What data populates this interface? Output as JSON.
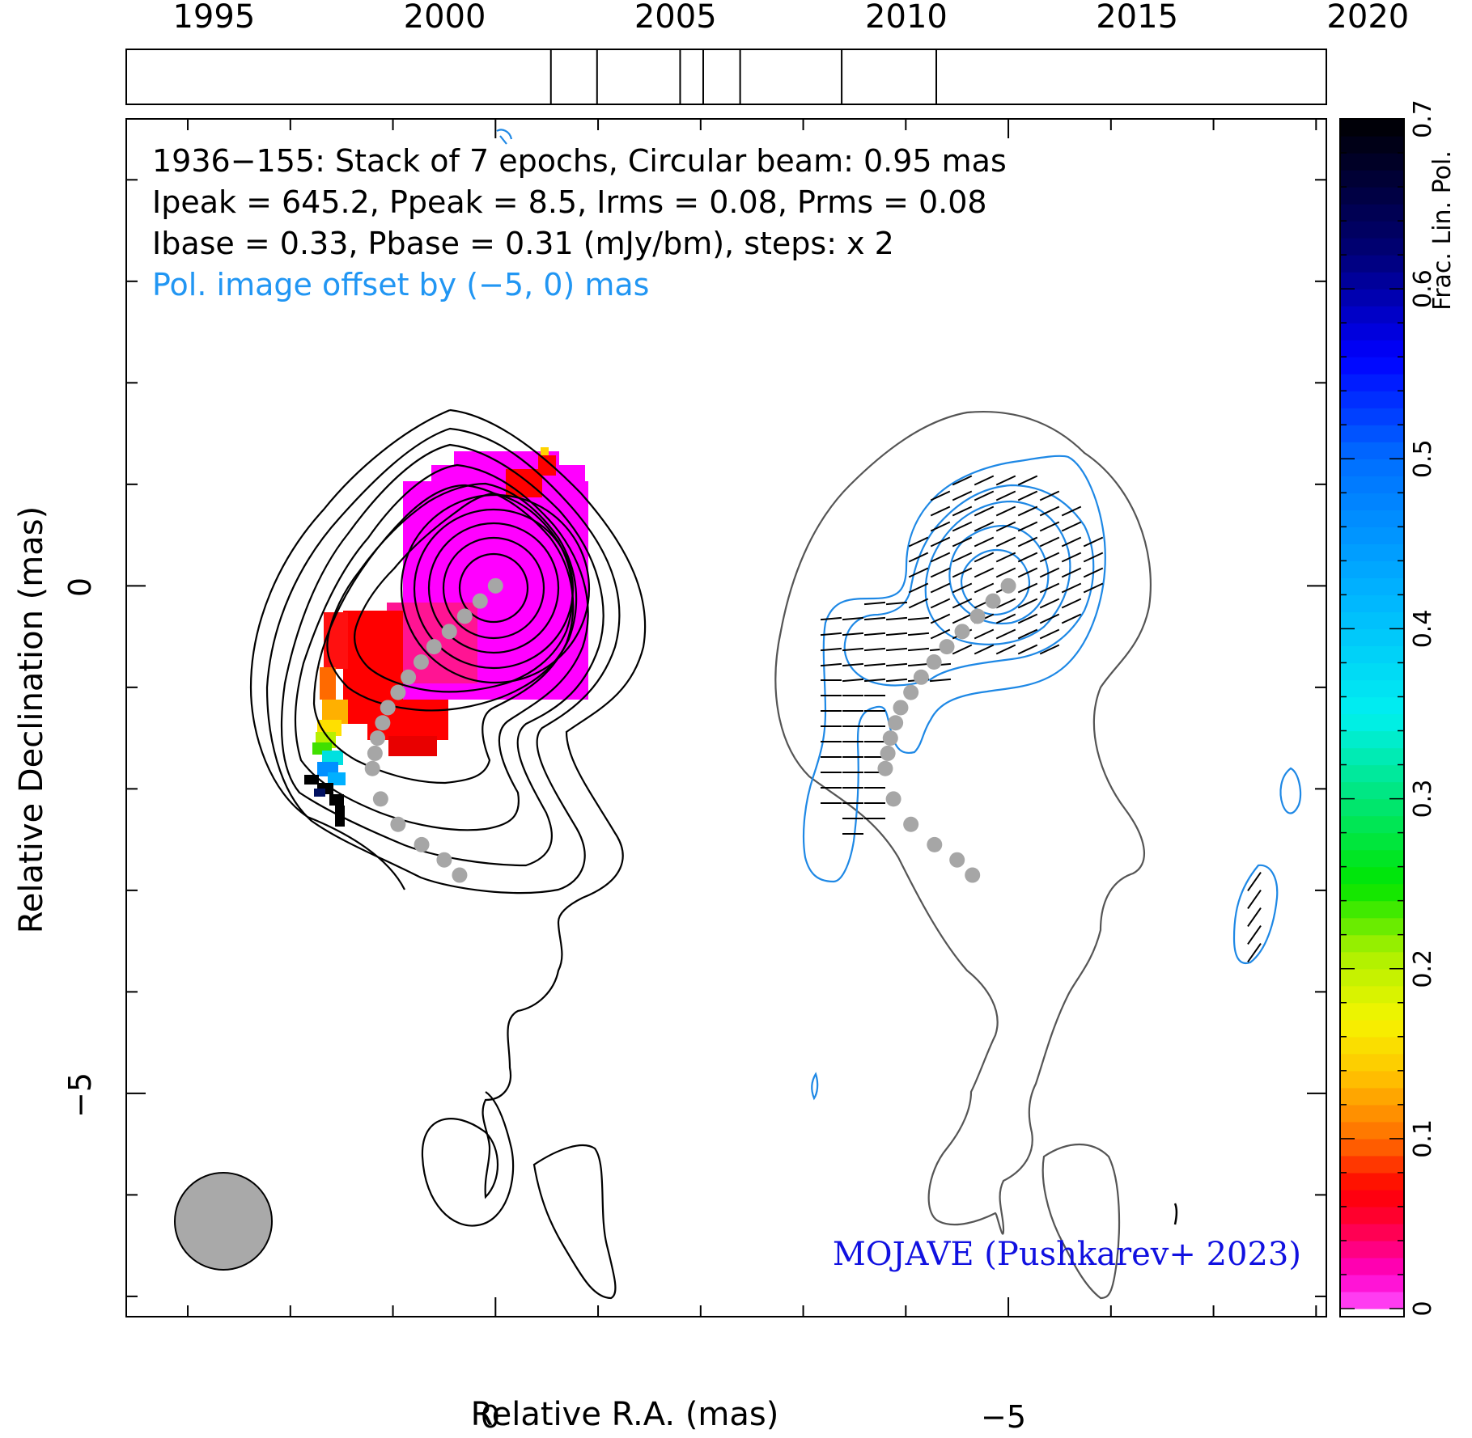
{
  "timeline": {
    "years": [
      "1995",
      "2000",
      "2005",
      "2010",
      "2015",
      "2020"
    ],
    "year_values": [
      1995,
      2000,
      2005,
      2010,
      2015,
      2020
    ],
    "range": [
      1993.1,
      2019.1
    ],
    "epochs": [
      2002.3,
      2003.3,
      2005.1,
      2005.6,
      2006.4,
      2008.6,
      2010.65
    ]
  },
  "header": {
    "line1": "1936−155: Stack of 7 epochs, Circular beam: 0.95 mas",
    "line2": "Ipeak = 645.2, Ppeak = 8.5, Irms = 0.08, Prms = 0.08",
    "line3": "Ibase = 0.33, Pbase = 0.31 (mJy/bm), steps: x 2",
    "line4": "Pol. image offset by (−5, 0) mas"
  },
  "credit": "MOJAVE (Pushkarev+ 2023)",
  "axes": {
    "xlabel": "Relative R.A. (mas)",
    "ylabel": "Relative Declination (mas)",
    "x_ticks": [
      "0",
      "−5"
    ],
    "y_ticks": [
      "0",
      "−5"
    ],
    "xlim": [
      3.6,
      -8.1
    ],
    "ylim": [
      -7.2,
      4.6
    ]
  },
  "colorbar": {
    "label": "Frac. Lin. Pol.",
    "ticks": [
      "0",
      "0.1",
      "0.2",
      "0.3",
      "0.4",
      "0.5",
      "0.6",
      "0.7"
    ],
    "range": [
      0,
      0.7
    ]
  },
  "colors": {
    "stokes_i_contours": "#000000",
    "pol_contours": "#1e88e5",
    "pol_offset_text": "#2196f3",
    "ridge_points": "#a6a6a6",
    "beam": "#a9a9a9",
    "credit_text": "#1010e0"
  },
  "chart_data": {
    "type": "heatmap",
    "source": "1936−155",
    "epochs_stacked": 7,
    "beam_mas": 0.95,
    "peak_intensity_mJy_bm": 645.2,
    "peak_polarized_mJy_bm": 8.5,
    "rms_I": 0.08,
    "rms_P": 0.08,
    "base_I": 0.33,
    "base_P": 0.31,
    "contour_step_factor": 2,
    "pol_offset_mas": [
      -5,
      0
    ],
    "ridge_line_ra_dec_mas": [
      [
        0.0,
        0.0
      ],
      [
        0.3,
        -0.3
      ],
      [
        0.6,
        -0.6
      ],
      [
        0.85,
        -0.9
      ],
      [
        1.05,
        -1.2
      ],
      [
        1.15,
        -1.5
      ],
      [
        1.2,
        -1.8
      ],
      [
        1.12,
        -2.1
      ],
      [
        0.95,
        -2.35
      ],
      [
        0.72,
        -2.55
      ],
      [
        0.5,
        -2.7
      ],
      [
        0.35,
        -2.85
      ]
    ]
  }
}
